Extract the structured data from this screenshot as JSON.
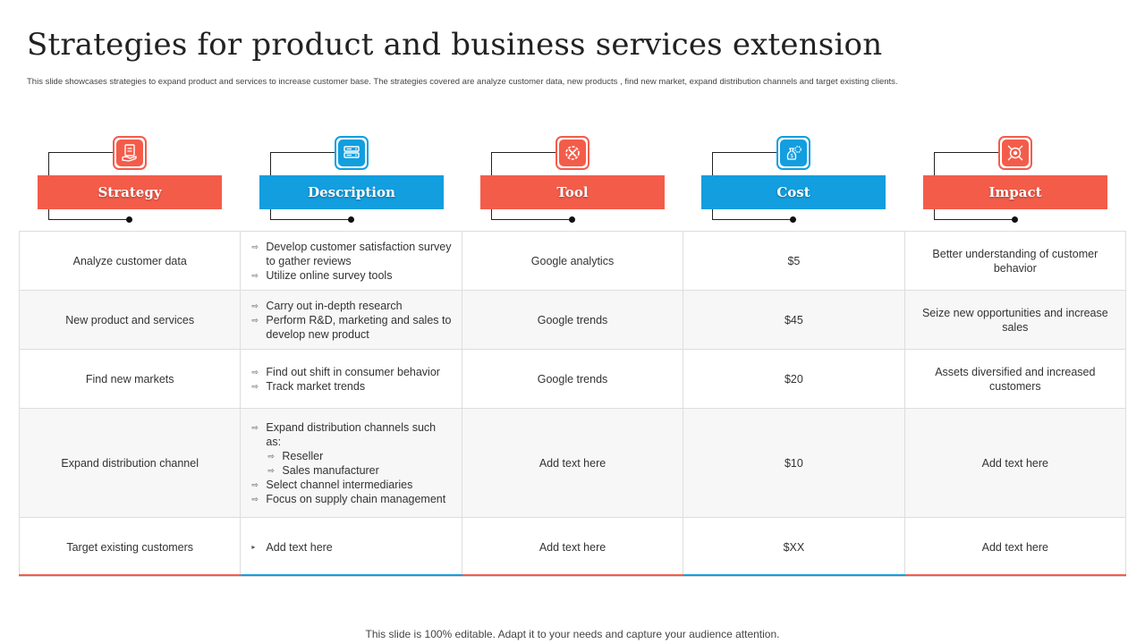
{
  "title": "Strategies for product and business services extension",
  "subtitle": "This slide showcases strategies to expand product and services to increase customer base. The strategies covered are analyze customer data, new products , find new market, expand distribution channels and target existing clients.",
  "colors": {
    "red": "#f45c4a",
    "blue": "#129edf"
  },
  "headers": [
    {
      "label": "Strategy",
      "icon": "clipboard-hand-icon",
      "color": "red"
    },
    {
      "label": "Description",
      "icon": "server-icon",
      "color": "blue"
    },
    {
      "label": "Tool",
      "icon": "gear-tools-icon",
      "color": "red"
    },
    {
      "label": "Cost",
      "icon": "money-bag-gear-icon",
      "color": "blue"
    },
    {
      "label": "Impact",
      "icon": "target-arrows-icon",
      "color": "red"
    }
  ],
  "rows": [
    {
      "strategy": "Analyze customer data",
      "description": [
        "Develop customer satisfaction survey to gather reviews",
        "Utilize online survey tools"
      ],
      "tool": "Google analytics",
      "cost": "$5",
      "impact": "Better understanding of customer behavior"
    },
    {
      "strategy": "New product and services",
      "description": [
        "Carry out in-depth research",
        "Perform R&D, marketing and sales to develop  new product"
      ],
      "tool": "Google trends",
      "cost": "$45",
      "impact": "Seize new opportunities and increase sales"
    },
    {
      "strategy": "Find new markets",
      "description": [
        "Find out shift in consumer behavior",
        "Track market trends"
      ],
      "tool": "Google trends",
      "cost": "$20",
      "impact": "Assets diversified  and increased customers"
    },
    {
      "strategy": "Expand distribution channel",
      "description_main": "Expand distribution channels such as:",
      "description_sub": [
        "Reseller",
        "Sales manufacturer"
      ],
      "description_rest": [
        "Select channel intermediaries",
        "Focus on supply chain management"
      ],
      "tool": "Add text here",
      "cost": "$10",
      "impact": "Add text here"
    },
    {
      "strategy": "Target  existing customers",
      "description": [
        "Add text here"
      ],
      "tool": "Add text here",
      "cost": "$XX",
      "impact": "Add text here"
    }
  ],
  "footer": "This slide is 100% editable. Adapt it to your  needs and capture your audience attention."
}
